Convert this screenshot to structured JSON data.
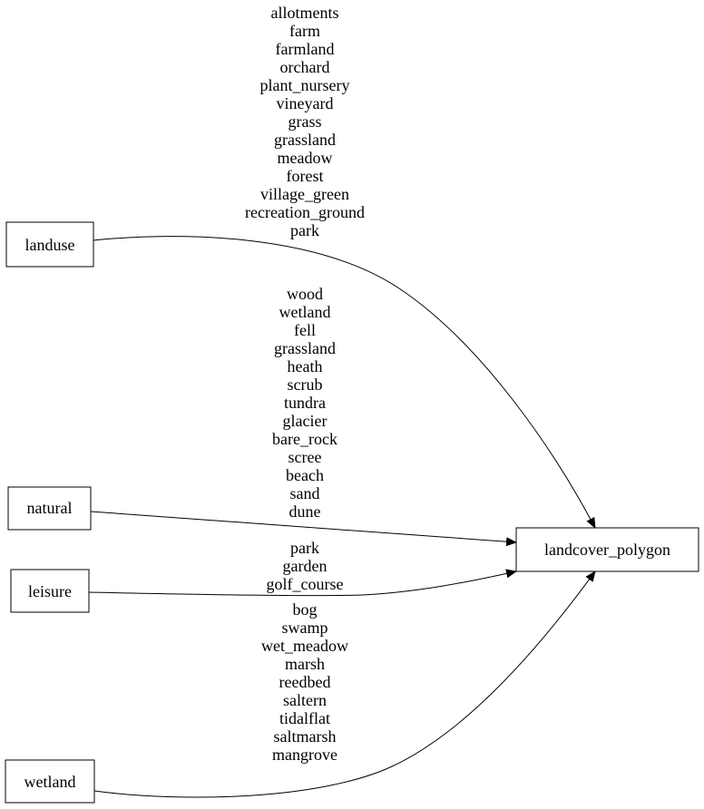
{
  "nodes": {
    "landuse": "landuse",
    "natural": "natural",
    "leisure": "leisure",
    "wetland": "wetland",
    "target": "landcover_polygon"
  },
  "edges": {
    "landuse": [
      "allotments",
      "farm",
      "farmland",
      "orchard",
      "plant_nursery",
      "vineyard",
      "grass",
      "grassland",
      "meadow",
      "forest",
      "village_green",
      "recreation_ground",
      "park"
    ],
    "natural": [
      "wood",
      "wetland",
      "fell",
      "grassland",
      "heath",
      "scrub",
      "tundra",
      "glacier",
      "bare_rock",
      "scree",
      "beach",
      "sand",
      "dune"
    ],
    "leisure": [
      "park",
      "garden",
      "golf_course"
    ],
    "wetland": [
      "bog",
      "swamp",
      "wet_meadow",
      "marsh",
      "reedbed",
      "saltern",
      "tidalflat",
      "saltmarsh",
      "mangrove"
    ]
  },
  "colors": {
    "stroke": "#000000",
    "fill": "#ffffff"
  }
}
